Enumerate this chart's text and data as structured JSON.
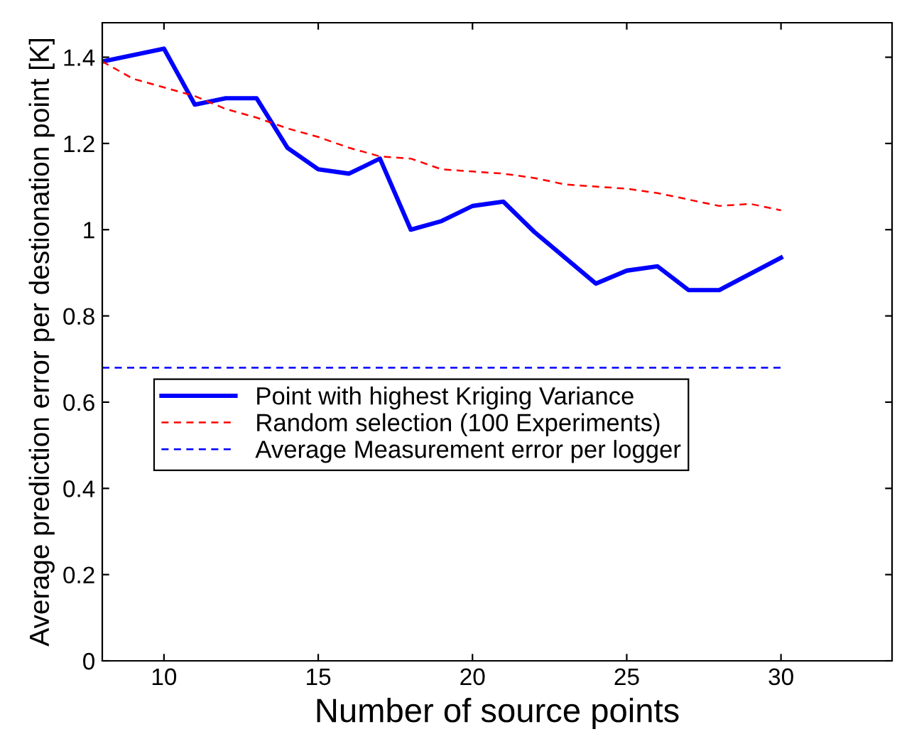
{
  "chart_data": {
    "type": "line",
    "xlabel": "Number of source points",
    "ylabel": "Average prediction error per destionation point [K]",
    "xlim": [
      8,
      33.6
    ],
    "xticks": [
      10,
      15,
      20,
      25,
      30
    ],
    "ylim": [
      0,
      1.48
    ],
    "yticks": [
      0,
      0.2,
      0.4,
      0.6,
      0.8,
      1,
      1.2,
      1.4
    ],
    "grid": false,
    "legend": "left",
    "marker": "none",
    "series": [
      {
        "name": "Point with highest Kriging Variance",
        "color": "#0000ff",
        "line_style": "solid",
        "x": [
          8,
          10,
          11,
          12,
          13,
          14,
          15,
          16,
          17,
          18,
          19,
          20,
          21,
          22,
          24,
          25,
          26,
          27,
          28,
          30
        ],
        "values": [
          1.39,
          1.42,
          1.29,
          1.305,
          1.305,
          1.19,
          1.14,
          1.13,
          1.165,
          1.0,
          1.02,
          1.055,
          1.065,
          0.995,
          0.875,
          0.905,
          0.915,
          0.86,
          0.86,
          0.935
        ]
      },
      {
        "name": "Random selection (100 Experiments)",
        "color": "#ff0000",
        "line_style": "dashed",
        "x": [
          8,
          9,
          10,
          11,
          12,
          13,
          14,
          15,
          16,
          17,
          18,
          19,
          20,
          21,
          22,
          23,
          24,
          25,
          26,
          27,
          28,
          29,
          30
        ],
        "values": [
          1.39,
          1.35,
          1.33,
          1.31,
          1.28,
          1.26,
          1.235,
          1.215,
          1.19,
          1.17,
          1.165,
          1.14,
          1.135,
          1.13,
          1.12,
          1.105,
          1.1,
          1.095,
          1.085,
          1.07,
          1.055,
          1.06,
          1.045
        ]
      },
      {
        "name": "Average Measurement error per logger",
        "color": "#0000ff",
        "line_style": "dashed",
        "x": [
          8,
          30
        ],
        "values": [
          0.68,
          0.68
        ]
      }
    ]
  }
}
